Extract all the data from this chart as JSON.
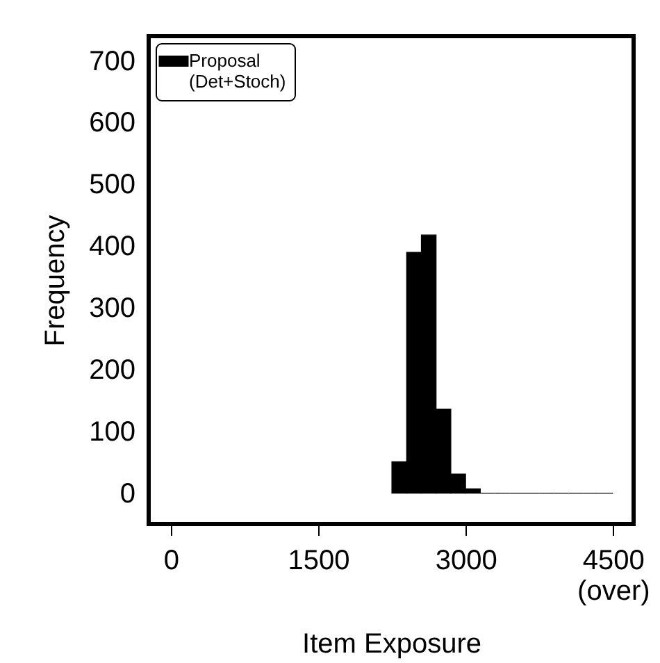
{
  "chart_data": {
    "type": "histogram",
    "xlabel": "Item Exposure",
    "ylabel": "Frequency",
    "bins": [
      2250,
      2400,
      2550,
      2700,
      2850,
      3000,
      3150,
      3300,
      3450,
      3600,
      3750,
      3900,
      4050,
      4200,
      4350,
      4500
    ],
    "series": [
      {
        "name": "Proposal\n(Det+Stoch)",
        "color": "#000000",
        "values": [
          51,
          390,
          418,
          136,
          31,
          7,
          0,
          0,
          0,
          0,
          0,
          0,
          0,
          0,
          0
        ]
      }
    ],
    "xlim": [
      -225,
      4710
    ],
    "xticks": [
      0,
      1500,
      3000,
      {
        "value": 4500,
        "label": "4500\n(over)"
      }
    ],
    "ylim": [
      -50,
      740
    ],
    "yticks": [
      0,
      100,
      200,
      300,
      400,
      500,
      600,
      700
    ],
    "grid": false,
    "legend": "top left"
  }
}
